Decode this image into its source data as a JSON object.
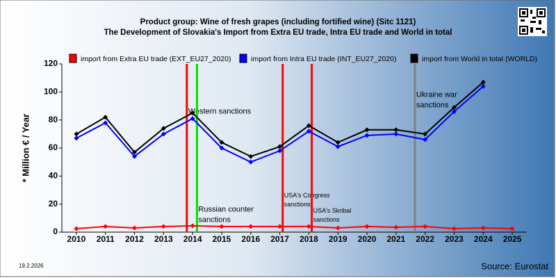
{
  "chart_data": {
    "type": "line",
    "title": [
      "Product group: Wine of fresh grapes (including fortified wine) (Sitc 1121)",
      "The Development of Slovakia's Import from Extra EU trade, Intra EU trade and World in total"
    ],
    "y_label": "* Million € / Year",
    "x": [
      2010,
      2011,
      2012,
      2013,
      2014,
      2015,
      2016,
      2017,
      2018,
      2019,
      2020,
      2021,
      2022,
      2023,
      2024,
      2025
    ],
    "xlim": [
      2009.5,
      2025.5
    ],
    "xticks": [
      2010,
      2011,
      2012,
      2013,
      2014,
      2015,
      2016,
      2017,
      2018,
      2019,
      2020,
      2021,
      2022,
      2023,
      2024,
      2025
    ],
    "ylim": [
      0,
      120
    ],
    "yticks": [
      0,
      20,
      40,
      60,
      80,
      100,
      120
    ],
    "series": [
      {
        "name": "import from Extra EU trade (EXT_EU27_2020)",
        "color": "#ff0000",
        "values": [
          2.5,
          4,
          3,
          4,
          4.5,
          4,
          4,
          4,
          4,
          3,
          4,
          3.5,
          4,
          2.5,
          3,
          2.5
        ]
      },
      {
        "name": "import from Intra EU trade (INT_EU27_2020)",
        "color": "#0000ff",
        "values": [
          67,
          78,
          54,
          70,
          81,
          60,
          50,
          58,
          72,
          61,
          69,
          70,
          66,
          86,
          104,
          null
        ]
      },
      {
        "name": "import from World in total (WORLD)",
        "color": "#000000",
        "values": [
          70,
          82,
          57,
          74,
          85,
          64,
          54,
          61,
          76,
          64,
          73,
          73,
          70,
          89,
          107,
          null
        ]
      }
    ],
    "annotations": [
      {
        "x": 2013.8,
        "color": "#ff0000",
        "text": [
          "Western sanctions"
        ],
        "y": 86,
        "size": 11
      },
      {
        "x": 2014.15,
        "color": "#00e000",
        "text": [
          "Russian counter",
          "sanctions"
        ],
        "y": 16,
        "size": 11
      },
      {
        "x": 2017.1,
        "color": "#ff0000",
        "text": [
          "USA's Congress",
          "sanctions"
        ],
        "y": 26,
        "size": 9
      },
      {
        "x": 2018.1,
        "color": "#ff0000",
        "text": [
          "USA's Skribal",
          "sanctions"
        ],
        "y": 15,
        "size": 9
      },
      {
        "x": 2021.65,
        "color": "#808080",
        "text": [
          "Ukraine war",
          "sanctions"
        ],
        "y": 98,
        "size": 11
      }
    ],
    "date": "19.2.2026",
    "source": "Source: Eurostat"
  }
}
